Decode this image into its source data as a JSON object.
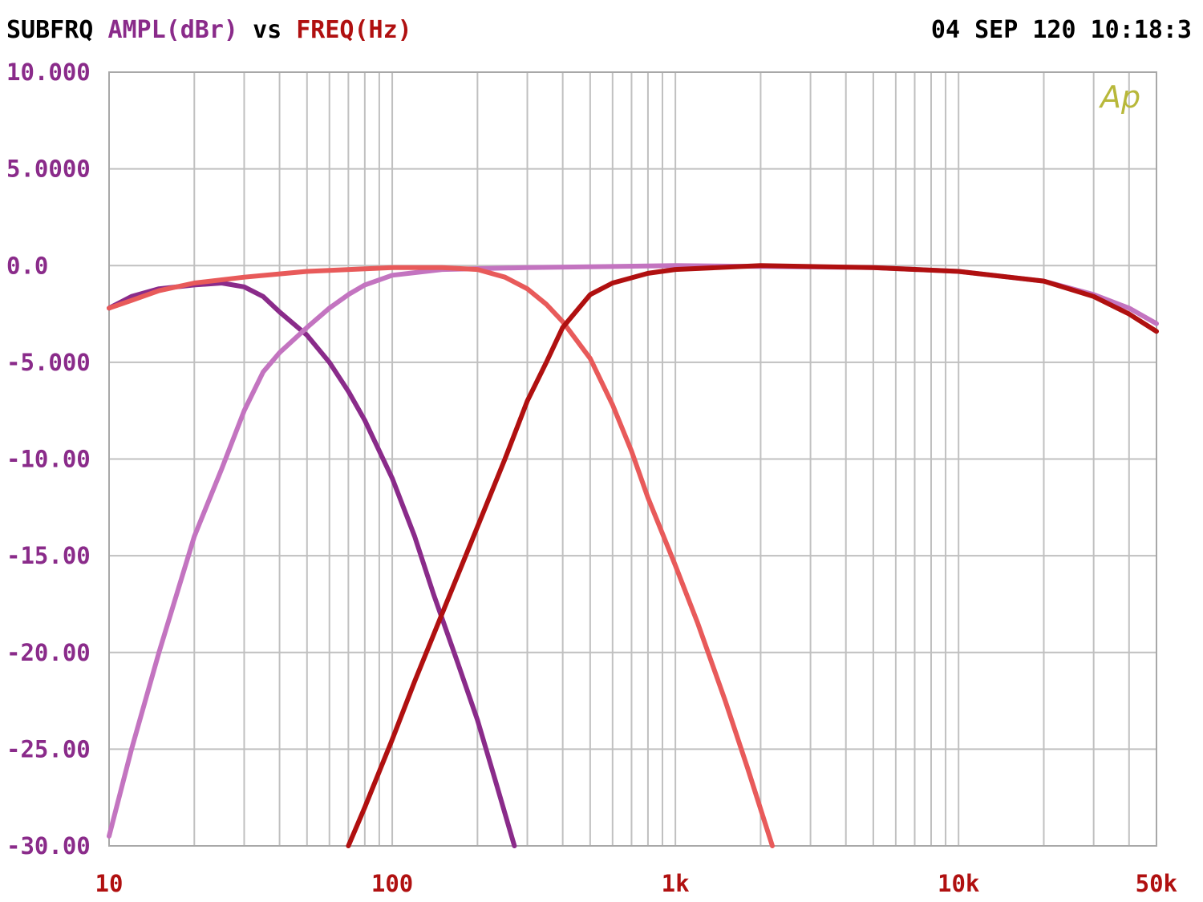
{
  "header": {
    "sweep_name": "SUBFRQ",
    "y_quantity": "AMPL(dBr)",
    "vs": "vs",
    "x_quantity": "FREQ(Hz)",
    "timestamp": "04 SEP 120 10:18:3",
    "colors": {
      "sweep_name": "#000000",
      "y_quantity": "#8a2b8a",
      "vs": "#000000",
      "x_quantity": "#b01010",
      "timestamp": "#000000"
    }
  },
  "logo": {
    "text": "Ap",
    "color": "#b8b83a"
  },
  "chart_data": {
    "type": "line",
    "title": "",
    "xlabel": "FREQ(Hz)",
    "ylabel": "AMPL(dBr)",
    "x_scale": "log",
    "xlim": [
      10,
      50000
    ],
    "ylim": [
      -30,
      10
    ],
    "grid": true,
    "legend": "none",
    "x_ticks": [
      {
        "value": 10,
        "label": "10"
      },
      {
        "value": 100,
        "label": "100"
      },
      {
        "value": 1000,
        "label": "1k"
      },
      {
        "value": 10000,
        "label": "10k"
      },
      {
        "value": 50000,
        "label": "50k"
      }
    ],
    "y_ticks": [
      {
        "value": 10,
        "label": "10.000"
      },
      {
        "value": 5,
        "label": "5.0000"
      },
      {
        "value": 0,
        "label": "0.0"
      },
      {
        "value": -5,
        "label": "-5.000"
      },
      {
        "value": -10,
        "label": "-10.00"
      },
      {
        "value": -15,
        "label": "-15.00"
      },
      {
        "value": -20,
        "label": "-20.00"
      },
      {
        "value": -25,
        "label": "-25.00"
      },
      {
        "value": -30,
        "label": "-30.00"
      }
    ],
    "colors": {
      "axis_labels_y": "#8a2b8a",
      "axis_labels_x": "#b01010",
      "grid": "#c0c0c0"
    },
    "series": [
      {
        "color": "#8a2b8a",
        "points": [
          [
            10,
            -2.2
          ],
          [
            12,
            -1.6
          ],
          [
            15,
            -1.2
          ],
          [
            20,
            -1.0
          ],
          [
            25,
            -0.9
          ],
          [
            30,
            -1.1
          ],
          [
            35,
            -1.6
          ],
          [
            40,
            -2.4
          ],
          [
            50,
            -3.6
          ],
          [
            60,
            -5.0
          ],
          [
            70,
            -6.5
          ],
          [
            80,
            -8.0
          ],
          [
            100,
            -11.0
          ],
          [
            120,
            -14.0
          ],
          [
            140,
            -17.0
          ],
          [
            170,
            -20.5
          ],
          [
            200,
            -23.5
          ],
          [
            230,
            -26.5
          ],
          [
            270,
            -30.0
          ]
        ]
      },
      {
        "color": "#c374c0",
        "points": [
          [
            10,
            -29.5
          ],
          [
            12,
            -25.0
          ],
          [
            15,
            -20.0
          ],
          [
            20,
            -14.0
          ],
          [
            25,
            -10.5
          ],
          [
            30,
            -7.5
          ],
          [
            35,
            -5.5
          ],
          [
            40,
            -4.5
          ],
          [
            50,
            -3.2
          ],
          [
            60,
            -2.2
          ],
          [
            70,
            -1.5
          ],
          [
            80,
            -1.0
          ],
          [
            100,
            -0.5
          ],
          [
            150,
            -0.2
          ],
          [
            300,
            -0.1
          ],
          [
            1000,
            0.0
          ],
          [
            5000,
            -0.1
          ],
          [
            10000,
            -0.3
          ],
          [
            20000,
            -0.8
          ],
          [
            30000,
            -1.5
          ],
          [
            40000,
            -2.2
          ],
          [
            50000,
            -3.0
          ]
        ]
      },
      {
        "color": "#e85a5a",
        "points": [
          [
            10,
            -2.2
          ],
          [
            12,
            -1.8
          ],
          [
            15,
            -1.3
          ],
          [
            20,
            -0.9
          ],
          [
            30,
            -0.6
          ],
          [
            50,
            -0.3
          ],
          [
            100,
            -0.1
          ],
          [
            150,
            -0.1
          ],
          [
            200,
            -0.2
          ],
          [
            250,
            -0.6
          ],
          [
            300,
            -1.2
          ],
          [
            350,
            -2.0
          ],
          [
            400,
            -2.9
          ],
          [
            500,
            -4.8
          ],
          [
            600,
            -7.2
          ],
          [
            700,
            -9.6
          ],
          [
            800,
            -12.0
          ],
          [
            1000,
            -15.5
          ],
          [
            1200,
            -18.5
          ],
          [
            1500,
            -22.5
          ],
          [
            1800,
            -26.0
          ],
          [
            2200,
            -30.0
          ]
        ]
      },
      {
        "color": "#b01010",
        "points": [
          [
            70,
            -30.0
          ],
          [
            80,
            -28.0
          ],
          [
            100,
            -24.5
          ],
          [
            120,
            -21.5
          ],
          [
            150,
            -18.0
          ],
          [
            200,
            -13.5
          ],
          [
            250,
            -10.0
          ],
          [
            300,
            -7.0
          ],
          [
            350,
            -5.0
          ],
          [
            400,
            -3.2
          ],
          [
            500,
            -1.5
          ],
          [
            600,
            -0.9
          ],
          [
            800,
            -0.4
          ],
          [
            1000,
            -0.2
          ],
          [
            2000,
            0.0
          ],
          [
            5000,
            -0.1
          ],
          [
            10000,
            -0.3
          ],
          [
            20000,
            -0.8
          ],
          [
            30000,
            -1.6
          ],
          [
            40000,
            -2.5
          ],
          [
            50000,
            -3.4
          ]
        ]
      }
    ]
  }
}
